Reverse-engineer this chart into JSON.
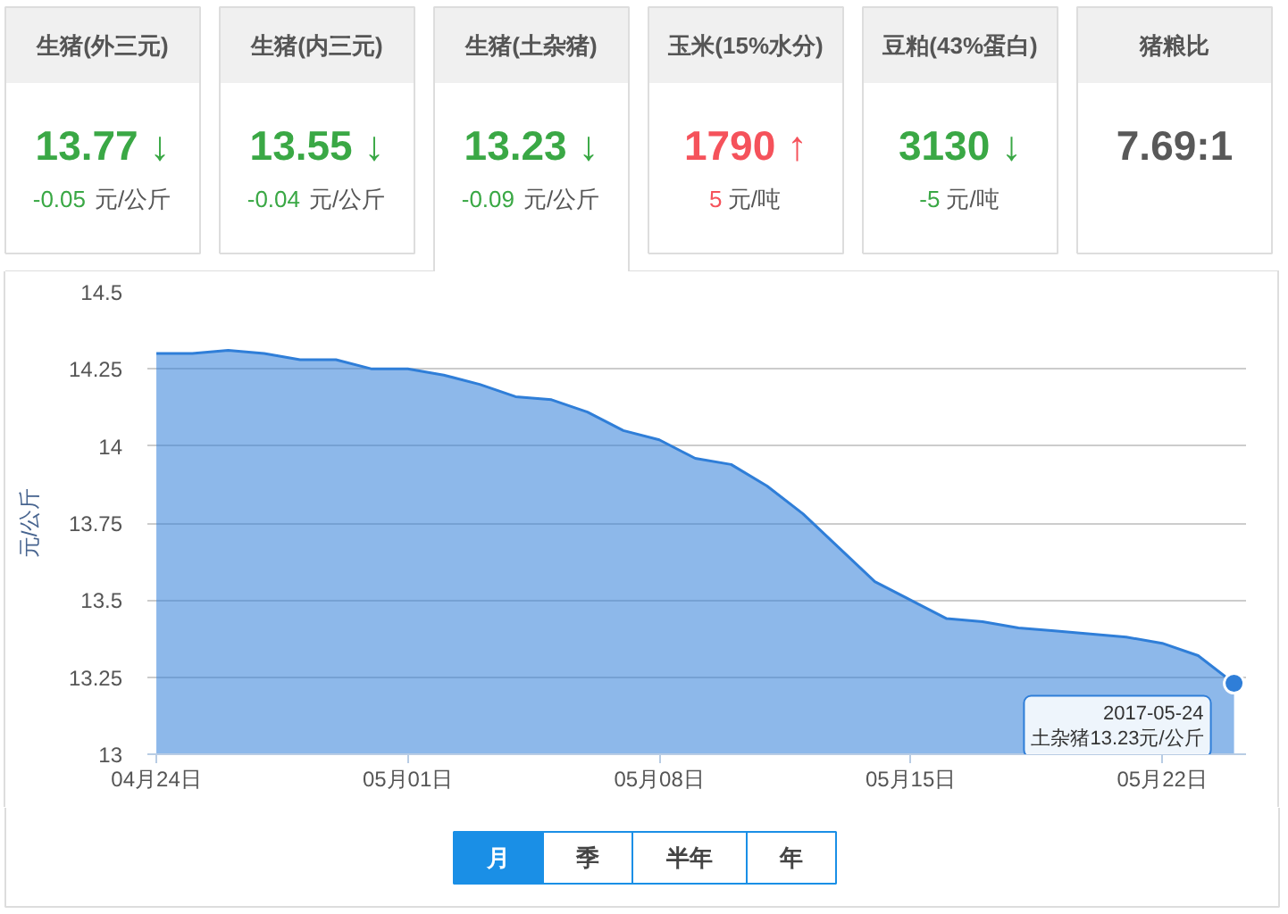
{
  "chart_data": [
    {
      "type": "other",
      "title": "生猪(外三元)",
      "annotations": [
        "13.77 ↓",
        "-0.05",
        "元/公斤"
      ],
      "color": "#3aa845"
    },
    {
      "type": "other",
      "title": "生猪(内三元)",
      "annotations": [
        "13.55 ↓",
        "-0.04",
        "元/公斤"
      ],
      "color": "#3aa845"
    },
    {
      "type": "other",
      "title": "生猪(土杂猪)",
      "annotations": [
        "13.23 ↓",
        "-0.09",
        "元/公斤"
      ],
      "color": "#3aa845"
    },
    {
      "type": "other",
      "title": "玉米(15%水分)",
      "annotations": [
        "1790 ↑",
        "5",
        "元/吨"
      ],
      "color": "#f5525b"
    },
    {
      "type": "other",
      "title": "豆粕(43%蛋白)",
      "annotations": [
        "3130 ↓",
        "-5",
        "元/吨"
      ],
      "color": "#3aa845"
    },
    {
      "type": "other",
      "title": "猪粮比",
      "annotations": [
        "7.69:1"
      ],
      "color": "#595959"
    },
    {
      "type": "area",
      "ylabel": "元/公斤",
      "color": "#2f7ed8",
      "x": [
        "2017-04-24",
        "2017-04-25",
        "2017-04-26",
        "2017-04-27",
        "2017-04-28",
        "2017-04-29",
        "2017-04-30",
        "2017-05-01",
        "2017-05-02",
        "2017-05-03",
        "2017-05-04",
        "2017-05-05",
        "2017-05-06",
        "2017-05-07",
        "2017-05-08",
        "2017-05-09",
        "2017-05-10",
        "2017-05-11",
        "2017-05-12",
        "2017-05-13",
        "2017-05-14",
        "2017-05-15",
        "2017-05-16",
        "2017-05-17",
        "2017-05-18",
        "2017-05-19",
        "2017-05-20",
        "2017-05-21",
        "2017-05-22",
        "2017-05-23",
        "2017-05-24"
      ],
      "values": [
        14.3,
        14.3,
        14.31,
        14.3,
        14.28,
        14.28,
        14.25,
        14.25,
        14.23,
        14.2,
        14.16,
        14.15,
        14.11,
        14.05,
        14.02,
        13.96,
        13.94,
        13.87,
        13.78,
        13.67,
        13.56,
        13.5,
        13.44,
        13.43,
        13.41,
        13.4,
        13.39,
        13.38,
        13.36,
        13.32,
        13.23
      ],
      "xlim": [
        "2017-04-23T18:00",
        "2017-05-24T08:00"
      ],
      "xticks": [
        {
          "value": "2017-04-24",
          "label": "04月24日"
        },
        {
          "value": "2017-05-01",
          "label": "05月01日"
        },
        {
          "value": "2017-05-08",
          "label": "05月08日"
        },
        {
          "value": "2017-05-15",
          "label": "05月15日"
        },
        {
          "value": "2017-05-22",
          "label": "05月22日"
        }
      ],
      "ylim": [
        13,
        14.5
      ],
      "yticks": [
        13,
        13.25,
        13.5,
        13.75,
        14,
        14.25,
        14.5
      ],
      "grid": "y",
      "annotations": [
        {
          "text": "2017-05-24\n土杂猪13.23元/公斤",
          "x": "2017-05-24",
          "y": 13.23
        }
      ]
    },
    {
      "type": "other",
      "annotations": [
        "月",
        "季",
        "半年",
        "年"
      ],
      "color": "#1a8fe6"
    }
  ]
}
